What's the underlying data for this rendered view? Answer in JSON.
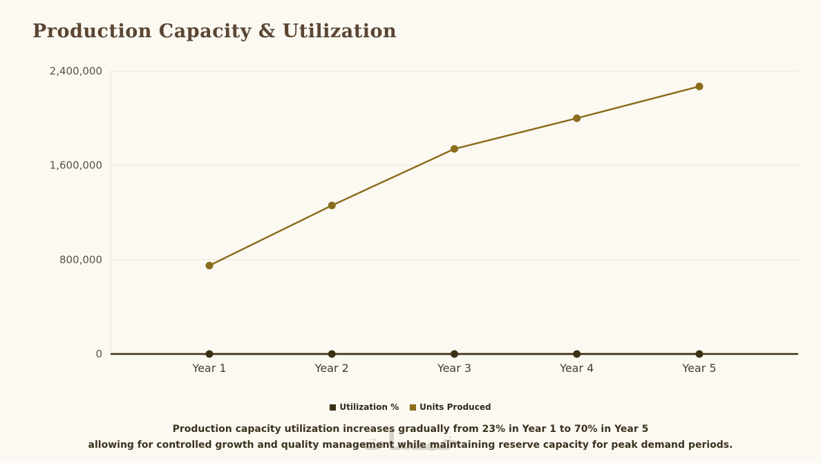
{
  "page": {
    "background": "#fcf9f2",
    "watermark": "خمسات"
  },
  "chart_data": {
    "type": "line",
    "title": "Production Capacity & Utilization",
    "categories": [
      "Year 1",
      "Year 2",
      "Year 3",
      "Year 4",
      "Year 5"
    ],
    "series": [
      {
        "name": "Utilization %",
        "color": "#3a3114",
        "values": [
          23,
          39,
          54,
          62,
          70
        ]
      },
      {
        "name": "Units Produced",
        "color": "#8a6d1d",
        "values": [
          750000,
          1260000,
          1740000,
          2000000,
          2270000
        ]
      }
    ],
    "xlabel": "",
    "ylabel": "",
    "y_axis": {
      "min": 0,
      "max": 2400000,
      "ticks": [
        0,
        800000,
        1600000,
        2400000
      ],
      "tick_labels": [
        "0",
        "800,000",
        "1,600,000",
        "2,400,000"
      ]
    },
    "grid": true,
    "legend_position": "bottom"
  },
  "caption": {
    "line1": "Production capacity utilization increases gradually from 23% in Year 1 to 70% in Year 5",
    "line2": "allowing for controlled growth and quality management while maintaining reserve capacity for peak demand periods."
  }
}
